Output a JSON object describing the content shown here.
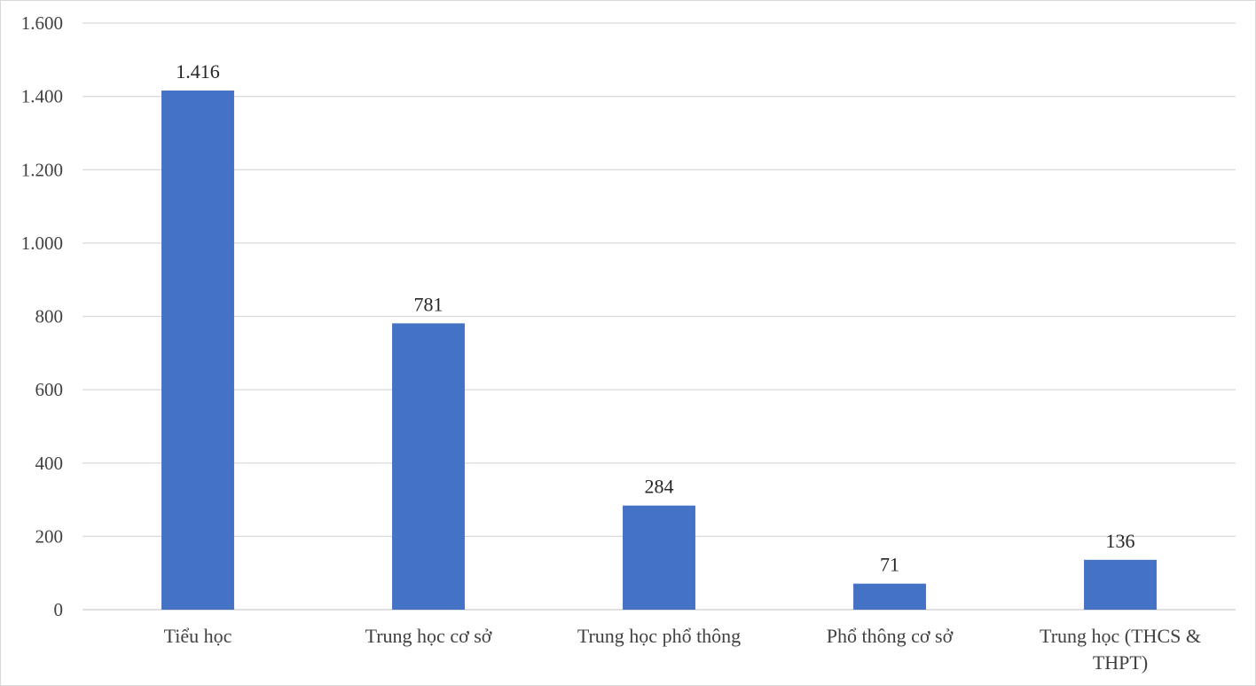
{
  "chart_data": {
    "type": "bar",
    "title": "",
    "xlabel": "",
    "ylabel": "",
    "categories": [
      [
        "Tiểu học"
      ],
      [
        "Trung học cơ sở"
      ],
      [
        "Trung học phổ thông"
      ],
      [
        "Phổ thông cơ sở"
      ],
      [
        "Trung học (THCS &",
        "THPT)"
      ]
    ],
    "values": [
      1416,
      781,
      284,
      71,
      136
    ],
    "value_labels": [
      "1.416",
      "781",
      "284",
      "71",
      "136"
    ],
    "ylim": [
      0,
      1600
    ],
    "yticks": [
      0,
      200,
      400,
      600,
      800,
      1000,
      1200,
      1400,
      1600
    ],
    "ytick_labels": [
      "0",
      "200",
      "400",
      "600",
      "800",
      "1.000",
      "1.200",
      "1.400",
      "1.600"
    ],
    "grid": true,
    "legend": "none",
    "bar_color": "#4472C4",
    "grid_color": "#d9d9d9"
  }
}
